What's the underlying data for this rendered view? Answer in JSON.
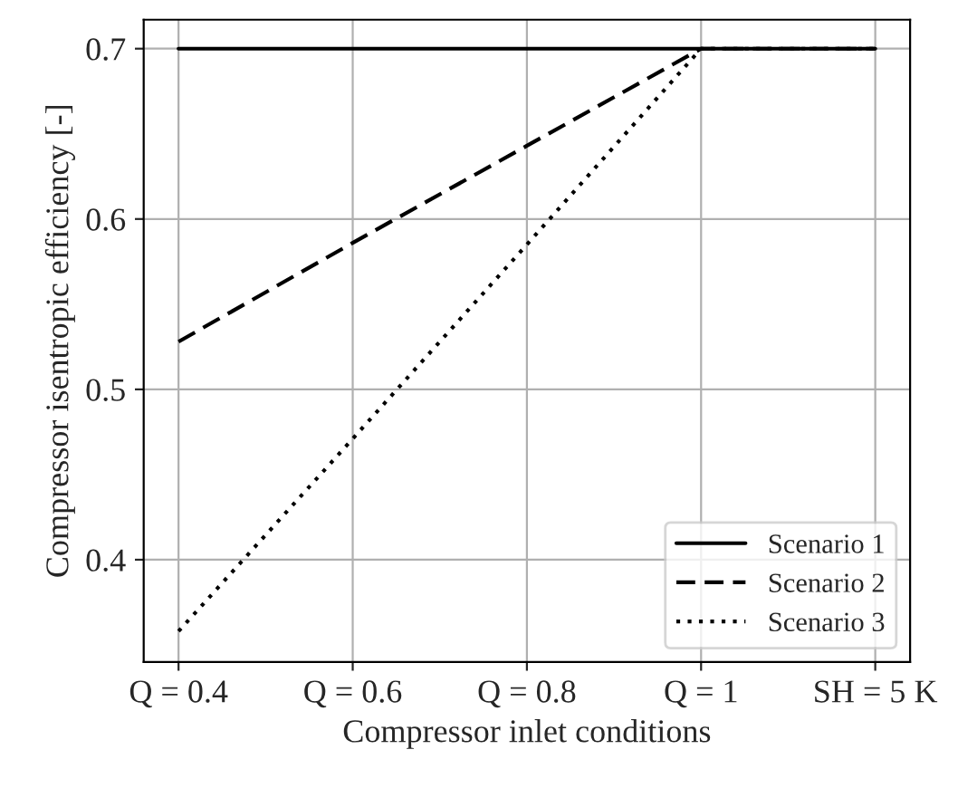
{
  "chart_data": {
    "type": "line",
    "xlabel": "Compressor inlet conditions",
    "ylabel": "Compressor isentropic efficiency [-]",
    "categories": [
      "Q = 0.4",
      "Q = 0.6",
      "Q = 0.8",
      "Q = 1",
      "SH = 5 K"
    ],
    "series": [
      {
        "name": "Scenario 1",
        "color": "#000000",
        "line_style": "solid",
        "values": [
          0.7,
          0.7,
          0.7,
          0.7,
          0.7
        ]
      },
      {
        "name": "Scenario 2",
        "color": "#000000",
        "line_style": "dashed",
        "values": [
          0.528,
          0.586,
          0.643,
          0.7,
          0.7
        ]
      },
      {
        "name": "Scenario 3",
        "color": "#000000",
        "line_style": "dotted",
        "values": [
          0.358,
          0.471,
          0.585,
          0.7,
          0.7
        ]
      }
    ],
    "ylim": [
      0.34,
      0.717
    ],
    "yticks": [
      0.4,
      0.5,
      0.6,
      0.7
    ],
    "grid": true,
    "legend": "lower right",
    "marker": "none"
  }
}
